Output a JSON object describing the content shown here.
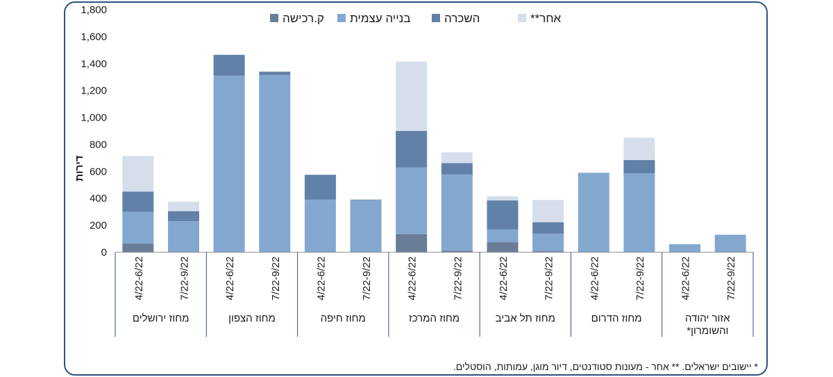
{
  "footnote": "* יישובים  ישראלים. ** אחר - מעונות סטודנטים, דיור מוגן, עמותות, הוסטלים.",
  "chart_data": {
    "type": "bar",
    "stacked": true,
    "ylabel": "דירות",
    "ylim": [
      0,
      1800
    ],
    "yticks": [
      0,
      200,
      400,
      600,
      800,
      1000,
      1200,
      1400,
      1600,
      1800
    ],
    "ytick_labels": [
      "0",
      "200",
      "400",
      "600",
      "800",
      "1,000",
      "1,200",
      "1,400",
      "1,600",
      "1,800"
    ],
    "legend_position": "top",
    "categories": [
      "4/22-6/22",
      "7/22-9/22",
      "4/22-6/22",
      "7/22-9/22",
      "4/22-6/22",
      "7/22-9/22",
      "4/22-6/22",
      "7/22-9/22",
      "4/22-6/22",
      "7/22-9/22",
      "4/22-6/22",
      "7/22-9/22",
      "4/22-6/22",
      "7/22-9/22"
    ],
    "groups": [
      {
        "label": [
          "מחוז ירושלים"
        ]
      },
      {
        "label": [
          "מחוז הצפון"
        ]
      },
      {
        "label": [
          "מחוז חיפה"
        ]
      },
      {
        "label": [
          "מחוז המרכז"
        ]
      },
      {
        "label": [
          "מחוז תל אביב"
        ]
      },
      {
        "label": [
          "מחוז הדרום"
        ]
      },
      {
        "label": [
          "אזור יהודה",
          "והשומרון*"
        ]
      }
    ],
    "series": [
      {
        "name": "ק.רכישה",
        "color": "#6a7d98",
        "values": [
          65,
          0,
          0,
          0,
          0,
          0,
          135,
          12,
          75,
          8,
          0,
          0,
          0,
          0
        ]
      },
      {
        "name": "בנייה עצמית",
        "color": "#84a7d0",
        "values": [
          235,
          230,
          1310,
          1315,
          390,
          385,
          495,
          565,
          95,
          130,
          590,
          585,
          60,
          130
        ]
      },
      {
        "name": "השכרה",
        "color": "#6181a8",
        "values": [
          150,
          75,
          155,
          25,
          185,
          5,
          270,
          85,
          215,
          85,
          0,
          100,
          0,
          0
        ]
      },
      {
        "name": "אחר**",
        "color": "#d6deeb",
        "values": [
          265,
          70,
          0,
          0,
          0,
          0,
          515,
          80,
          30,
          165,
          0,
          165,
          0,
          0
        ]
      }
    ]
  }
}
